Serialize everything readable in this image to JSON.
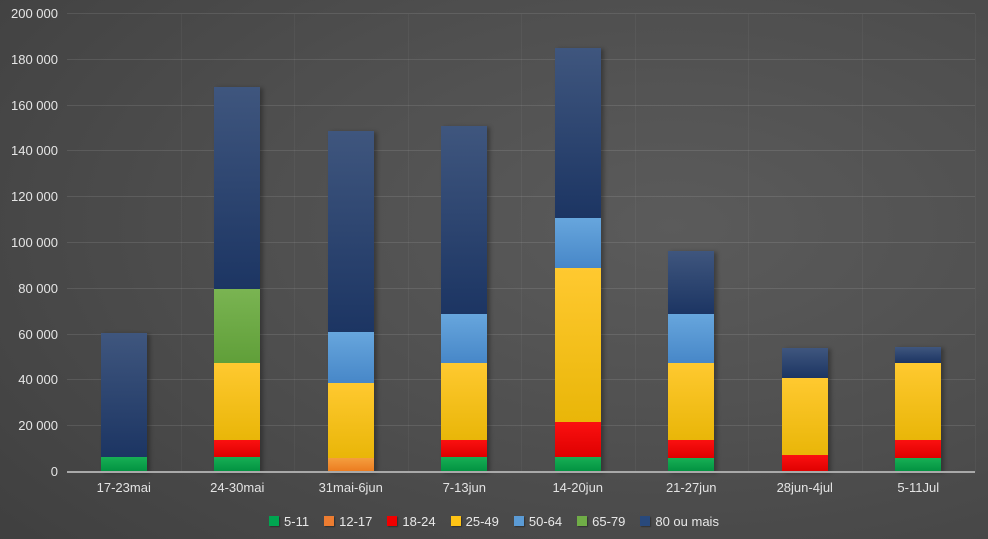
{
  "chart_data": {
    "type": "bar",
    "stacked": true,
    "title": "",
    "xlabel": "",
    "ylabel": "",
    "grid": true,
    "legend_position": "bottom",
    "categories": [
      "17-23mai",
      "24-30mai",
      "31mai-6jun",
      "7-13jun",
      "14-20jun",
      "21-27jun",
      "28jun-4jul",
      "5-11Jul"
    ],
    "y_axis": {
      "min": 0,
      "max": 200000,
      "tick_step": 20000,
      "tick_labels": [
        "0",
        "20 000",
        "40 000",
        "60 000",
        "80 000",
        "100 000",
        "120 000",
        "140 000",
        "160 000",
        "180 000",
        "200 000"
      ]
    },
    "series": [
      {
        "name": "5-11",
        "color": "#00A550",
        "gradient_top": "#17AF55",
        "gradient_bottom": "#019140",
        "values": [
          6500,
          6500,
          0,
          6500,
          6500,
          6000,
          0,
          6000
        ]
      },
      {
        "name": "12-17",
        "color": "#ED7D31",
        "gradient_top": "#F59E3E",
        "gradient_bottom": "#EB7A1E",
        "values": [
          0,
          0,
          6000,
          0,
          0,
          0,
          0,
          0
        ]
      },
      {
        "name": "18-24",
        "color": "#F00000",
        "gradient_top": "#FB1010",
        "gradient_bottom": "#DE0000",
        "values": [
          0,
          7500,
          0,
          7500,
          15500,
          8000,
          7500,
          8000
        ]
      },
      {
        "name": "25-49",
        "color": "#FFC415",
        "gradient_top": "#FFC930",
        "gradient_bottom": "#E9B608",
        "values": [
          0,
          33500,
          33000,
          33500,
          67000,
          33500,
          33500,
          33500
        ]
      },
      {
        "name": "50-64",
        "color": "#5B9BD5",
        "gradient_top": "#67A6DD",
        "gradient_bottom": "#4787C8",
        "values": [
          0,
          0,
          22000,
          21500,
          22000,
          21500,
          0,
          0
        ]
      },
      {
        "name": "65-79",
        "color": "#70AD47",
        "gradient_top": "#7AB452",
        "gradient_bottom": "#609F39",
        "values": [
          0,
          32500,
          0,
          0,
          0,
          0,
          0,
          0
        ]
      },
      {
        "name": "80 ou mais",
        "color": "#28497C",
        "gradient_top": "#3F567E",
        "gradient_bottom": "#1C3563",
        "values": [
          54000,
          88000,
          88000,
          82000,
          74000,
          27500,
          13000,
          7000
        ]
      }
    ],
    "totals": [
      60500,
      168000,
      149000,
      151000,
      185000,
      96500,
      54000,
      54500
    ]
  },
  "colors": {
    "background_light": "#5B5B5B",
    "background_dark": "#2C2C2C",
    "text": "#E5E5E5",
    "gridline": "rgba(255,255,255,0.10)",
    "axis_line": "#A9A9A9"
  }
}
